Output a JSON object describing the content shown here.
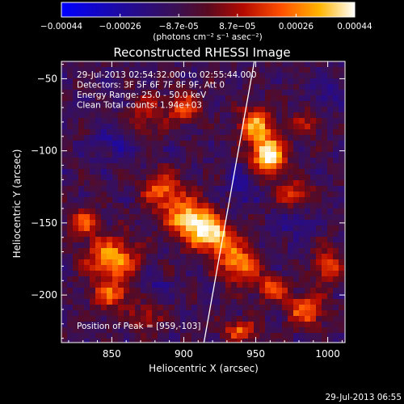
{
  "chart_data": {
    "type": "heatmap",
    "title": "Reconstructed RHESSI Image",
    "xlabel": "Heliocentric X (arcsec)",
    "ylabel": "Heliocentric Y (arcsec)",
    "xlim": [
      815,
      1012
    ],
    "ylim": [
      -233,
      -38
    ],
    "x_ticks": [
      850,
      900,
      950,
      1000
    ],
    "y_ticks": [
      -50,
      -100,
      -150,
      -200
    ],
    "colorbar": {
      "range": [
        -0.00044,
        0.00044
      ],
      "ticks": [
        "-0.00044",
        "-0.00026",
        "-8.7e-05",
        "8.7e-05",
        "0.00026",
        "0.00044"
      ],
      "unit_label": "(photons cm⁻² s⁻¹ asec⁻²)"
    },
    "annotations": [
      "29-Jul-2013 02:54:32.000 to 02:55:44.000",
      "Detectors: 3F 5F 6F 7F 8F 9F, Att 0",
      "Energy Range: 25.0 - 50.0 keV",
      "Clean    Total counts: 1.94e+03"
    ],
    "peak_label": "Position of Peak = [959,-103]",
    "peak": [
      959,
      -103
    ],
    "limb_line": [
      [
        914,
        -233
      ],
      [
        949,
        -38
      ]
    ],
    "bright_features": [
      {
        "x": 905,
        "y": -148,
        "sx": 11,
        "sy": 9,
        "amp": 0.9
      },
      {
        "x": 921,
        "y": -160,
        "sx": 10,
        "sy": 8,
        "amp": 0.8
      },
      {
        "x": 938,
        "y": -178,
        "sx": 9,
        "sy": 9,
        "amp": 0.7
      },
      {
        "x": 886,
        "y": -128,
        "sx": 10,
        "sy": 9,
        "amp": 0.6
      },
      {
        "x": 959,
        "y": -103,
        "sx": 8,
        "sy": 9,
        "amp": 1.0
      },
      {
        "x": 950,
        "y": -82,
        "sx": 8,
        "sy": 9,
        "amp": 0.7
      },
      {
        "x": 977,
        "y": -130,
        "sx": 8,
        "sy": 6,
        "amp": 0.5
      },
      {
        "x": 900,
        "y": -70,
        "sx": 7,
        "sy": 7,
        "amp": 0.55
      },
      {
        "x": 850,
        "y": -175,
        "sx": 12,
        "sy": 10,
        "amp": 0.75
      },
      {
        "x": 850,
        "y": -200,
        "sx": 9,
        "sy": 7,
        "amp": 0.55
      },
      {
        "x": 830,
        "y": -150,
        "sx": 8,
        "sy": 7,
        "amp": 0.5
      },
      {
        "x": 875,
        "y": -215,
        "sx": 7,
        "sy": 6,
        "amp": 0.4
      },
      {
        "x": 985,
        "y": -210,
        "sx": 9,
        "sy": 8,
        "amp": 0.6
      },
      {
        "x": 1000,
        "y": -180,
        "sx": 7,
        "sy": 8,
        "amp": 0.55
      },
      {
        "x": 960,
        "y": -195,
        "sx": 8,
        "sy": 6,
        "amp": 0.55
      },
      {
        "x": 940,
        "y": -225,
        "sx": 8,
        "sy": 5,
        "amp": 0.55
      },
      {
        "x": 875,
        "y": -75,
        "sx": 9,
        "sy": 10,
        "amp": 0.35
      },
      {
        "x": 985,
        "y": -80,
        "sx": 8,
        "sy": 8,
        "amp": 0.3
      }
    ],
    "dim_features": [
      {
        "x": 850,
        "y": -95,
        "sx": 9,
        "sy": 7,
        "amp": 0.6
      },
      {
        "x": 940,
        "y": -125,
        "sx": 7,
        "sy": 10,
        "amp": 0.55
      },
      {
        "x": 975,
        "y": -150,
        "sx": 8,
        "sy": 6,
        "amp": 0.6
      },
      {
        "x": 880,
        "y": -195,
        "sx": 7,
        "sy": 5,
        "amp": 0.5
      },
      {
        "x": 1000,
        "y": -60,
        "sx": 9,
        "sy": 9,
        "amp": 0.5
      }
    ]
  },
  "footer": {
    "timestamp": "29-Jul-2013 06:55"
  }
}
